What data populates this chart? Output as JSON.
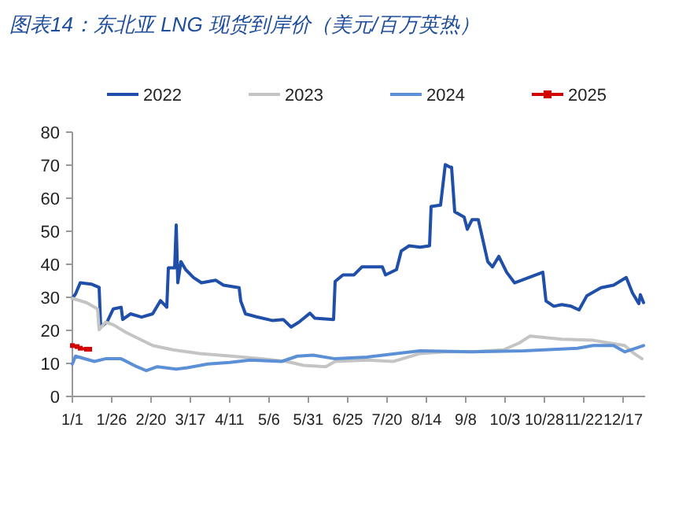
{
  "chart_data": {
    "type": "line",
    "title": "图表14：东北亚 LNG 现货到岸价（美元/百万英热）",
    "legend": "top",
    "grid": false,
    "marker": "none",
    "line_style": "solid",
    "xlim": [
      "--01-01",
      "--12-31"
    ],
    "xticks": [
      {
        "value": "--01-01",
        "label": "1/1"
      },
      {
        "value": "--01-26",
        "label": "1/26"
      },
      {
        "value": "--02-20",
        "label": "2/20"
      },
      {
        "value": "--03-17",
        "label": "3/17"
      },
      {
        "value": "--04-11",
        "label": "4/11"
      },
      {
        "value": "--05-06",
        "label": "5/6"
      },
      {
        "value": "--05-31",
        "label": "5/31"
      },
      {
        "value": "--06-25",
        "label": "6/25"
      },
      {
        "value": "--07-20",
        "label": "7/20"
      },
      {
        "value": "--08-14",
        "label": "8/14"
      },
      {
        "value": "--09-08",
        "label": "9/8"
      },
      {
        "value": "--10-03",
        "label": "10/3"
      },
      {
        "value": "--10-28",
        "label": "10/28"
      },
      {
        "value": "--11-22",
        "label": "11/22"
      },
      {
        "value": "--12-17",
        "label": "12/17"
      }
    ],
    "ylim": [
      0,
      80
    ],
    "yticks": [
      0,
      10,
      20,
      30,
      40,
      50,
      60,
      70,
      80
    ],
    "series": [
      {
        "name": "2022",
        "color": "#1f4fa8",
        "x": [
          "--01-01",
          "--01-03",
          "--01-06",
          "--01-13",
          "--01-18",
          "--01-19",
          "--01-23",
          "--01-27",
          "--02-01",
          "--02-02",
          "--02-07",
          "--02-14",
          "--02-21",
          "--02-26",
          "--03-02",
          "--03-03",
          "--03-07",
          "--03-08",
          "--03-09",
          "--03-11",
          "--03-14",
          "--03-19",
          "--03-24",
          "--04-02",
          "--04-07",
          "--04-17",
          "--04-18",
          "--04-21",
          "--04-28",
          "--05-08",
          "--05-15",
          "--05-20",
          "--05-25",
          "--06-01",
          "--06-04",
          "--06-16",
          "--06-17",
          "--06-22",
          "--06-29",
          "--07-04",
          "--07-11",
          "--07-17",
          "--07-19",
          "--07-26",
          "--07-29",
          "--08-03",
          "--08-10",
          "--08-16",
          "--08-17",
          "--08-23",
          "--08-26",
          "--08-29",
          "--08-30",
          "--09-01",
          "--09-07",
          "--09-09",
          "--09-12",
          "--09-16",
          "--09-22",
          "--09-25",
          "--09-29",
          "--10-04",
          "--10-09",
          "--10-27",
          "--10-29",
          "--11-03",
          "--11-08",
          "--11-14",
          "--11-19",
          "--11-24",
          "--12-03",
          "--12-11",
          "--12-19",
          "--12-23",
          "--12-27",
          "--12-28",
          "--12-30"
        ],
        "values": [
          29.7,
          31,
          34.4,
          34,
          33,
          21,
          22.5,
          26.5,
          27,
          23.3,
          25,
          24,
          25,
          29,
          27,
          38.9,
          38.9,
          51.9,
          34.4,
          40.8,
          38.4,
          36,
          34.4,
          35.2,
          33.7,
          32.9,
          28.9,
          25,
          24.1,
          23,
          23.3,
          21,
          22.5,
          25.2,
          23.7,
          23.3,
          34.8,
          36.8,
          36.8,
          39.2,
          39.2,
          39.2,
          36.8,
          38.4,
          44,
          45.6,
          45.2,
          45.6,
          57.5,
          57.9,
          70.2,
          69.4,
          69.4,
          55.9,
          54.3,
          50.6,
          53.5,
          53.5,
          40.8,
          39.2,
          42.4,
          37.6,
          34.4,
          37.6,
          28.9,
          27.3,
          27.8,
          27.3,
          26.2,
          30.5,
          32.9,
          33.7,
          36,
          31.3,
          28.1,
          30.8,
          28.4
        ]
      },
      {
        "name": "2023",
        "color": "#c4c4c4",
        "x": [
          "--01-01",
          "--01-10",
          "--01-17",
          "--01-18",
          "--01-22",
          "--01-27",
          "--02-04",
          "--02-21",
          "--03-06",
          "--03-23",
          "--04-12",
          "--05-02",
          "--05-17",
          "--05-28",
          "--06-11",
          "--06-17",
          "--07-07",
          "--07-24",
          "--08-10",
          "--08-26",
          "--09-12",
          "--10-02",
          "--10-12",
          "--10-19",
          "--11-08",
          "--11-28",
          "--12-18",
          "--12-24",
          "--12-29"
        ],
        "values": [
          29.7,
          28.4,
          26.5,
          20.2,
          22.5,
          21.7,
          19.4,
          15.4,
          14.1,
          13,
          12.2,
          11.4,
          10.6,
          9.4,
          9,
          10.6,
          11,
          10.6,
          13,
          13.5,
          13.5,
          14.1,
          16.2,
          18.3,
          17.3,
          17,
          15.4,
          13,
          11.4
        ]
      },
      {
        "name": "2024",
        "color": "#5b8fd6",
        "x": [
          "--01-01",
          "--01-03",
          "--01-15",
          "--01-22",
          "--02-01",
          "--02-11",
          "--02-17",
          "--02-24",
          "--03-08",
          "--03-15",
          "--03-28",
          "--04-11",
          "--04-24",
          "--05-14",
          "--05-24",
          "--06-03",
          "--06-17",
          "--07-07",
          "--08-10",
          "--09-12",
          "--10-15",
          "--11-18",
          "--11-28",
          "--12-11",
          "--12-18",
          "--12-30"
        ],
        "values": [
          9.8,
          12.2,
          10.6,
          11.4,
          11.4,
          9,
          7.8,
          9,
          8.3,
          8.7,
          9.8,
          10.3,
          11,
          10.6,
          12.2,
          12.5,
          11.4,
          11.9,
          13.8,
          13.5,
          13.8,
          14.6,
          15.4,
          15.4,
          13.5,
          15.4
        ]
      },
      {
        "name": "2025",
        "color": "#d40000",
        "marker": "square",
        "x": [
          "--01-01",
          "--01-04",
          "--01-06",
          "--01-10",
          "--01-12"
        ],
        "values": [
          15.4,
          15.1,
          14.6,
          14.3,
          14.3
        ]
      }
    ]
  }
}
